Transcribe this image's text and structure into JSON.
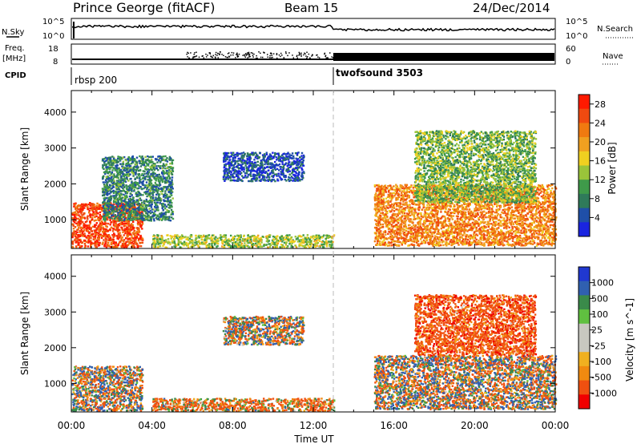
{
  "header": {
    "title": "Prince George (fitACF)",
    "beam": "Beam 15",
    "date": "24/Dec/2014"
  },
  "top_panels": {
    "nsky_label": "N.Sky",
    "nsearch_label": "N.Search",
    "noise_left_ticks": [
      "10^5",
      "10^0"
    ],
    "noise_right_ticks": [
      "10^5",
      "10^0"
    ],
    "freq_label": "Freq.",
    "freq_unit": "[MHz]",
    "freq_ticks": [
      "18",
      "8"
    ],
    "nave_label": "Nave",
    "nave_ticks": [
      "60",
      "0"
    ],
    "cpid_label": "CPID",
    "cpid_segments": [
      {
        "name": "rbsp 200",
        "start_hour": 0
      },
      {
        "name": "twofsound 3503",
        "start_hour": 13
      }
    ]
  },
  "colors": {
    "power_scale": [
      "#1a24e0",
      "#1f4fa8",
      "#2f7a5a",
      "#3f9a4a",
      "#9ac43a",
      "#f0d020",
      "#f0a020",
      "#f07a10",
      "#f04a10",
      "#ff1a00"
    ],
    "velocity_scale": [
      "#2038d0",
      "#3060b0",
      "#3a8a4a",
      "#60c040",
      "#c8c8c0",
      "#c8c8c0",
      "#f0b020",
      "#f08a10",
      "#f05010",
      "#f00000"
    ],
    "scatter_floor": "#e0c060"
  },
  "chart_data": [
    {
      "type": "heatmap",
      "title": "",
      "xlabel": "Time UT",
      "ylabel": "Slant Range [km]",
      "xlim": [
        0,
        24
      ],
      "ylim": [
        200,
        4600
      ],
      "x_ticks": [
        "00:00",
        "04:00",
        "08:00",
        "12:00",
        "16:00",
        "20:00",
        "00:00"
      ],
      "y_ticks": [
        "1000",
        "2000",
        "3000",
        "4000"
      ],
      "colorbar": {
        "label": "Power [dB]",
        "range": [
          0,
          30
        ],
        "ticks": [
          "4",
          "8",
          "12",
          "16",
          "20",
          "24",
          "28"
        ]
      },
      "regions": [
        {
          "t_start": 0.0,
          "t_end": 3.5,
          "range_min": 250,
          "range_max": 1500,
          "mean_value": 26
        },
        {
          "t_start": 1.5,
          "t_end": 5.0,
          "range_min": 1000,
          "range_max": 2800,
          "mean_value": 8
        },
        {
          "t_start": 7.5,
          "t_end": 11.5,
          "range_min": 2100,
          "range_max": 2900,
          "mean_value": 4
        },
        {
          "t_start": 4.0,
          "t_end": 13.0,
          "range_min": 250,
          "range_max": 600,
          "mean_value": 14
        },
        {
          "t_start": 15.0,
          "t_end": 24.0,
          "range_min": 300,
          "range_max": 2000,
          "mean_value": 22
        },
        {
          "t_start": 17.0,
          "t_end": 23.0,
          "range_min": 1500,
          "range_max": 3500,
          "mean_value": 12
        }
      ]
    },
    {
      "type": "heatmap",
      "title": "",
      "xlabel": "Time UT",
      "ylabel": "Slant Range [km]",
      "xlim": [
        0,
        24
      ],
      "ylim": [
        200,
        4600
      ],
      "x_ticks": [
        "00:00",
        "04:00",
        "08:00",
        "12:00",
        "16:00",
        "20:00",
        "00:00"
      ],
      "y_ticks": [
        "1000",
        "2000",
        "3000",
        "4000"
      ],
      "colorbar": {
        "label": "Velocity [m s^-1]",
        "ticks": [
          "1000",
          "500",
          "100",
          "25",
          "-25",
          "-100",
          "-500",
          "-1000"
        ]
      },
      "regions": [
        {
          "t_start": 0.0,
          "t_end": 3.5,
          "range_min": 250,
          "range_max": 1500,
          "mean_value": 0
        },
        {
          "t_start": 7.5,
          "t_end": 11.5,
          "range_min": 2100,
          "range_max": 2900,
          "mean_value": 0
        },
        {
          "t_start": 4.0,
          "t_end": 13.0,
          "range_min": 250,
          "range_max": 600,
          "mean_value": -80
        },
        {
          "t_start": 15.0,
          "t_end": 24.0,
          "range_min": 300,
          "range_max": 1800,
          "mean_value": 0
        },
        {
          "t_start": 17.0,
          "t_end": 23.0,
          "range_min": 1800,
          "range_max": 3500,
          "mean_value": -150
        }
      ]
    }
  ]
}
